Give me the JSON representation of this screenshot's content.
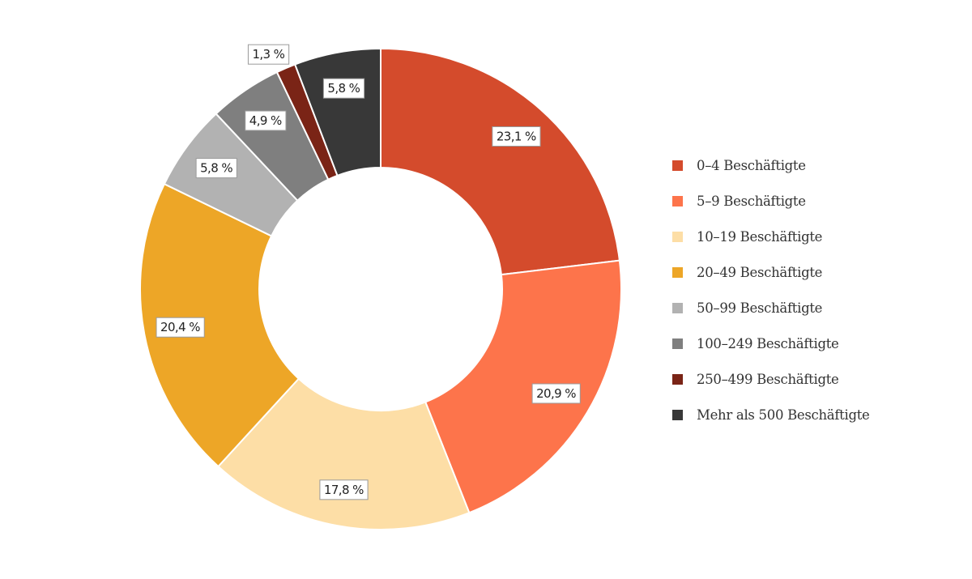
{
  "chart_data": {
    "type": "pie",
    "variant": "donut",
    "legend_position": "right",
    "slices": [
      {
        "label": "0–4 Beschäftigte",
        "value": 23.1,
        "value_label": "23,1 %",
        "color": "#d44b2c"
      },
      {
        "label": "5–9 Beschäftigte",
        "value": 20.9,
        "value_label": "20,9 %",
        "color": "#fd744b"
      },
      {
        "label": "10–19 Beschäftigte",
        "value": 17.8,
        "value_label": "17,8 %",
        "color": "#fddea6"
      },
      {
        "label": "20–49 Beschäftigte",
        "value": 20.4,
        "value_label": "20,4 %",
        "color": "#eda627"
      },
      {
        "label": "50–99 Beschäftigte",
        "value": 5.8,
        "value_label": "5,8 %",
        "color": "#b2b2b2"
      },
      {
        "label": "100–249 Beschäftigte",
        "value": 4.9,
        "value_label": "4,9 %",
        "color": "#7f7f7f"
      },
      {
        "label": "250–499 Beschäftigte",
        "value": 1.3,
        "value_label": "1,3 %",
        "color": "#7a2416"
      },
      {
        "label": "Mehr als 500 Beschäftigte",
        "value": 5.8,
        "value_label": "5,8 %",
        "color": "#383838"
      }
    ]
  }
}
